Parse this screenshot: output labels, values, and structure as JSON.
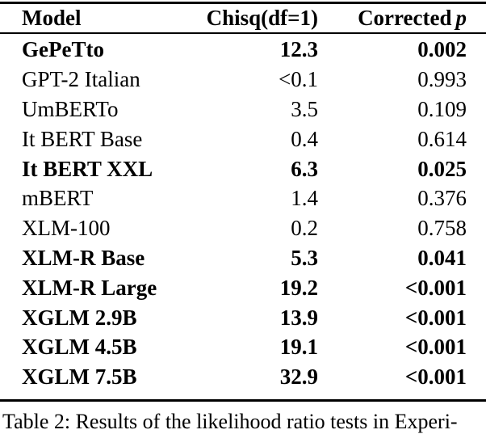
{
  "table": {
    "header": {
      "model": "Model",
      "chisq": "Chisq(df=1)",
      "corrected": "Corrected",
      "p_symbol": "p"
    },
    "rows": [
      {
        "model": "GePeTto",
        "chisq": "12.3",
        "p": "0.002",
        "bold": true
      },
      {
        "model": "GPT-2 Italian",
        "chisq": "<0.1",
        "p": "0.993",
        "bold": false
      },
      {
        "model": "UmBERTo",
        "chisq": "3.5",
        "p": "0.109",
        "bold": false
      },
      {
        "model": "It BERT Base",
        "chisq": "0.4",
        "p": "0.614",
        "bold": false
      },
      {
        "model": "It BERT XXL",
        "chisq": "6.3",
        "p": "0.025",
        "bold": true
      },
      {
        "model": "mBERT",
        "chisq": "1.4",
        "p": "0.376",
        "bold": false
      },
      {
        "model": "XLM-100",
        "chisq": "0.2",
        "p": "0.758",
        "bold": false
      },
      {
        "model": "XLM-R Base",
        "chisq": "5.3",
        "p": "0.041",
        "bold": true
      },
      {
        "model": "XLM-R Large",
        "chisq": "19.2",
        "p": "<0.001",
        "bold": true
      },
      {
        "model": "XGLM 2.9B",
        "chisq": "13.9",
        "p": "<0.001",
        "bold": true
      },
      {
        "model": "XGLM 4.5B",
        "chisq": "19.1",
        "p": "<0.001",
        "bold": true
      },
      {
        "model": "XGLM 7.5B",
        "chisq": "32.9",
        "p": "<0.001",
        "bold": true
      }
    ]
  },
  "caption": {
    "text": "Table 2: Results of the likelihood ratio tests in Experi-"
  },
  "colors": {
    "text": "#000000",
    "background": "#ffffff"
  }
}
